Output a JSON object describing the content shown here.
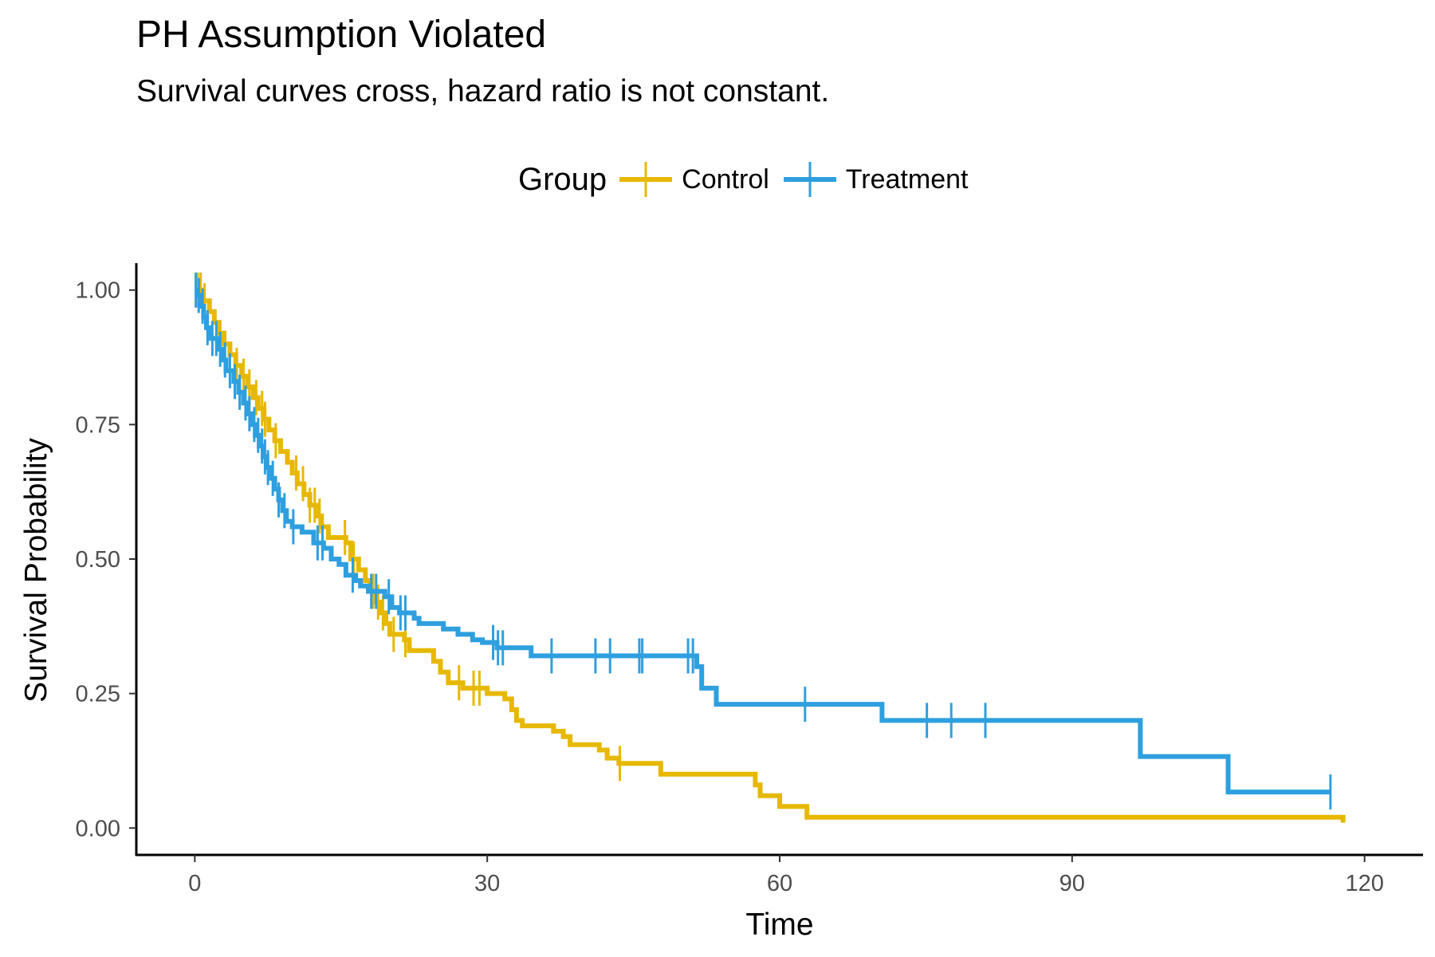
{
  "chart_data": {
    "type": "line",
    "subtype": "kaplan-meier step",
    "title": "PH Assumption Violated",
    "subtitle": "Survival curves cross, hazard ratio is not constant.",
    "xlabel": "Time",
    "ylabel": "Survival Probability",
    "xlim": [
      -6,
      126
    ],
    "ylim": [
      -0.05,
      1.05
    ],
    "xticks": [
      0,
      30,
      60,
      90,
      120
    ],
    "xtick_labels": [
      "0",
      "30",
      "60",
      "90",
      "120"
    ],
    "yticks": [
      0,
      0.25,
      0.5,
      0.75,
      1
    ],
    "ytick_labels": [
      "0.00",
      "0.25",
      "0.50",
      "0.75",
      "1.00"
    ],
    "grid": false,
    "legend": {
      "title": "Group",
      "position": "top"
    },
    "series": [
      {
        "name": "Control",
        "color": "#E7B800",
        "steps": [
          [
            0,
            1.0
          ],
          [
            0.8,
            0.98
          ],
          [
            1.5,
            0.96
          ],
          [
            2.0,
            0.94
          ],
          [
            2.5,
            0.92
          ],
          [
            3.0,
            0.9
          ],
          [
            3.6,
            0.88
          ],
          [
            4.2,
            0.86
          ],
          [
            4.8,
            0.84
          ],
          [
            5.4,
            0.82
          ],
          [
            6.0,
            0.8
          ],
          [
            6.5,
            0.78
          ],
          [
            7.1,
            0.76
          ],
          [
            7.6,
            0.74
          ],
          [
            8.2,
            0.72
          ],
          [
            8.8,
            0.7
          ],
          [
            9.5,
            0.68
          ],
          [
            10.0,
            0.66
          ],
          [
            10.5,
            0.64
          ],
          [
            11.2,
            0.62
          ],
          [
            11.8,
            0.6
          ],
          [
            12.5,
            0.58
          ],
          [
            13.0,
            0.56
          ],
          [
            13.7,
            0.54
          ],
          [
            15.5,
            0.53
          ],
          [
            16.0,
            0.5
          ],
          [
            16.8,
            0.48
          ],
          [
            17.5,
            0.46
          ],
          [
            18.0,
            0.44
          ],
          [
            18.5,
            0.42
          ],
          [
            19.0,
            0.4
          ],
          [
            19.6,
            0.38
          ],
          [
            20.0,
            0.36
          ],
          [
            21.5,
            0.35
          ],
          [
            22.0,
            0.33
          ],
          [
            24.5,
            0.31
          ],
          [
            25.2,
            0.29
          ],
          [
            26.0,
            0.27
          ],
          [
            27.5,
            0.26
          ],
          [
            30.0,
            0.25
          ],
          [
            31.8,
            0.24
          ],
          [
            32.5,
            0.22
          ],
          [
            33.0,
            0.2
          ],
          [
            33.6,
            0.19
          ],
          [
            36.8,
            0.18
          ],
          [
            37.8,
            0.17
          ],
          [
            38.5,
            0.155
          ],
          [
            41.5,
            0.145
          ],
          [
            42.3,
            0.13
          ],
          [
            43.5,
            0.12
          ],
          [
            47.8,
            0.1
          ],
          [
            57.5,
            0.08
          ],
          [
            58.0,
            0.06
          ],
          [
            60.0,
            0.04
          ],
          [
            62.8,
            0.02
          ],
          [
            117.8,
            0.01
          ]
        ],
        "end_x": 117.8,
        "censor": [
          0.3,
          0.6,
          1.0,
          4.3,
          5.0,
          5.6,
          6.3,
          6.9,
          7.2,
          8.3,
          10.4,
          11.1,
          11.8,
          12.3,
          12.8,
          15.4,
          16.3,
          18.3,
          18.8,
          19.3,
          20.4,
          21.6,
          27.1,
          28.6,
          29.2,
          43.6
        ]
      },
      {
        "name": "Treatment",
        "color": "#2E9FDF",
        "steps": [
          [
            0,
            1.0
          ],
          [
            0.3,
            0.99
          ],
          [
            0.6,
            0.97
          ],
          [
            0.9,
            0.95
          ],
          [
            1.2,
            0.93
          ],
          [
            1.6,
            0.91
          ],
          [
            2.5,
            0.89
          ],
          [
            2.8,
            0.87
          ],
          [
            3.2,
            0.85
          ],
          [
            4.0,
            0.83
          ],
          [
            4.5,
            0.81
          ],
          [
            5.0,
            0.79
          ],
          [
            5.4,
            0.77
          ],
          [
            5.8,
            0.75
          ],
          [
            6.2,
            0.73
          ],
          [
            6.6,
            0.71
          ],
          [
            7.0,
            0.69
          ],
          [
            7.4,
            0.67
          ],
          [
            7.8,
            0.65
          ],
          [
            8.2,
            0.63
          ],
          [
            8.6,
            0.61
          ],
          [
            9.0,
            0.59
          ],
          [
            9.4,
            0.57
          ],
          [
            10.0,
            0.56
          ],
          [
            11.0,
            0.55
          ],
          [
            12.2,
            0.53
          ],
          [
            13.2,
            0.52
          ],
          [
            14.0,
            0.5
          ],
          [
            14.8,
            0.49
          ],
          [
            15.5,
            0.47
          ],
          [
            16.5,
            0.46
          ],
          [
            17.0,
            0.45
          ],
          [
            17.8,
            0.44
          ],
          [
            19.5,
            0.43
          ],
          [
            20.2,
            0.41
          ],
          [
            21.0,
            0.4
          ],
          [
            22.5,
            0.39
          ],
          [
            23.0,
            0.38
          ],
          [
            25.5,
            0.37
          ],
          [
            27.0,
            0.36
          ],
          [
            28.5,
            0.35
          ],
          [
            29.5,
            0.345
          ],
          [
            31.0,
            0.335
          ],
          [
            34.5,
            0.32
          ],
          [
            51.5,
            0.3
          ],
          [
            52.0,
            0.26
          ],
          [
            53.5,
            0.23
          ],
          [
            70.5,
            0.2
          ],
          [
            97.0,
            0.133
          ],
          [
            106.0,
            0.067
          ]
        ],
        "end_x": 116.5,
        "censor": [
          0.1,
          0.4,
          0.8,
          1.3,
          1.8,
          2.2,
          2.6,
          3.1,
          3.6,
          4.1,
          4.6,
          5.2,
          5.6,
          6.1,
          6.5,
          6.9,
          7.2,
          7.5,
          8.0,
          8.6,
          9.2,
          10.1,
          12.6,
          13.1,
          16.2,
          18.1,
          18.6,
          19.9,
          21.1,
          21.6,
          30.6,
          31.1,
          31.6,
          36.6,
          41.1,
          42.6,
          45.6,
          45.9,
          50.6,
          51.1,
          62.6,
          75.1,
          77.6,
          81.1,
          116.5
        ]
      }
    ]
  }
}
